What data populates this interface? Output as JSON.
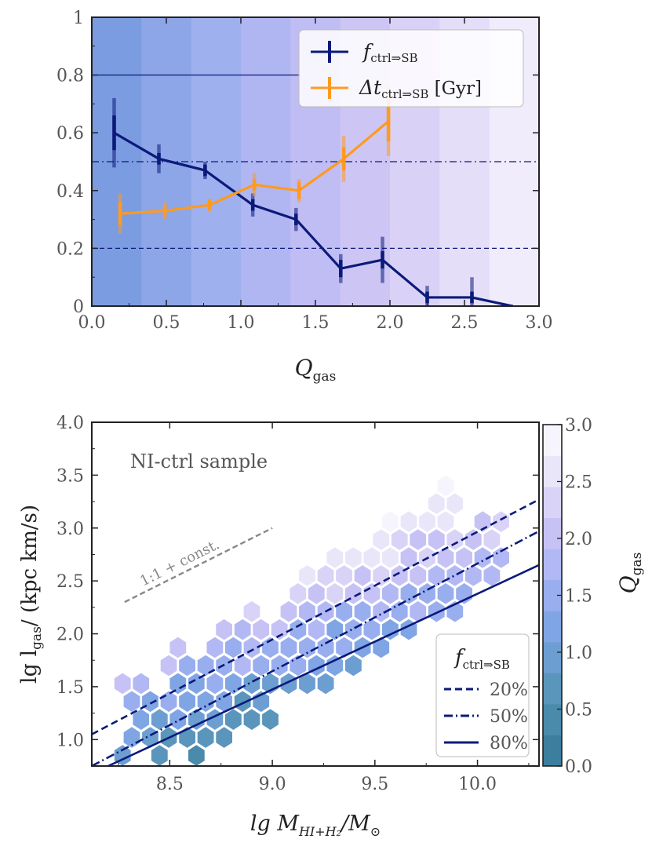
{
  "chart_data": [
    {
      "type": "line",
      "xlabel": "Q",
      "xlabel_sub": "gas",
      "xlim": [
        0.0,
        3.0
      ],
      "ylim": [
        0,
        1
      ],
      "xticks": [
        "0.0",
        "0.5",
        "1.0",
        "1.5",
        "2.0",
        "2.5",
        "3.0"
      ],
      "xtick_values": [
        0,
        0.5,
        1,
        1.5,
        2,
        2.5,
        3
      ],
      "yticks": [
        "0",
        "0.2",
        "0.4",
        "0.6",
        "0.8",
        "1"
      ],
      "ytick_values": [
        0,
        0.2,
        0.4,
        0.6,
        0.8,
        1
      ],
      "background_bins": {
        "edges": [
          0,
          0.333,
          0.667,
          1.0,
          1.333,
          1.667,
          2.0,
          2.333,
          2.667,
          3.0
        ],
        "colors": [
          "#7b9ce0",
          "#8ca6e8",
          "#9eb0ee",
          "#b0b6f2",
          "#c0bdf4",
          "#cdc6f4",
          "#dad2f6",
          "#e5def8",
          "#f0ecfb"
        ]
      },
      "reference_lines": [
        {
          "y": 0.8,
          "style": "solid",
          "x_range": [
            0,
            1.4
          ]
        },
        {
          "y": 0.5,
          "style": "dashdot"
        },
        {
          "y": 0.2,
          "style": "dashed"
        }
      ],
      "series": [
        {
          "name": "f",
          "name_sub": "ctrl⇒SB",
          "color": "#0b1a7a",
          "x": [
            0.15,
            0.45,
            0.76,
            1.08,
            1.37,
            1.67,
            1.95,
            2.25,
            2.55,
            2.82
          ],
          "y": [
            0.6,
            0.51,
            0.47,
            0.35,
            0.3,
            0.13,
            0.16,
            0.03,
            0.03,
            0.0
          ],
          "err_inner": [
            0.06,
            0.02,
            0.02,
            0.02,
            0.02,
            0.03,
            0.03,
            0.02,
            0.02,
            0.0
          ],
          "err_outer": [
            0.12,
            0.05,
            0.03,
            0.04,
            0.04,
            0.05,
            0.08,
            0.04,
            0.07,
            0.0
          ]
        },
        {
          "name": "Δt",
          "name_sub": "ctrl⇒SB",
          "name_suffix": " [Gyr]",
          "color": "#ff9a1f",
          "x": [
            0.19,
            0.49,
            0.79,
            1.09,
            1.39,
            1.69,
            1.99
          ],
          "y": [
            0.32,
            0.33,
            0.35,
            0.42,
            0.4,
            0.51,
            0.64
          ],
          "err_inner": [
            0.04,
            0.02,
            0.02,
            0.02,
            0.03,
            0.04,
            0.07
          ],
          "err_outer": [
            0.07,
            0.03,
            0.02,
            0.04,
            0.04,
            0.08,
            0.12
          ]
        }
      ],
      "legend_placement": "top-right"
    },
    {
      "type": "heatmap",
      "subtype": "hexbin",
      "annotation": "NI-ctrl sample",
      "guide_label": "1:1 + const.",
      "xlabel": "lg M",
      "xlabel_sub": "HI+H₂",
      "xlabel_suffix": "/M",
      "xlabel_sub2": "⊙",
      "ylabel": "lg l",
      "ylabel_sub": "gas",
      "ylabel_suffix": "/ (kpc km/s)",
      "xlim": [
        8.12,
        10.3
      ],
      "ylim": [
        0.75,
        4.0
      ],
      "xticks": [
        "8.5",
        "9.0",
        "9.5",
        "10.0"
      ],
      "xtick_values": [
        8.5,
        9.0,
        9.5,
        10.0
      ],
      "yticks": [
        "1.0",
        "1.5",
        "2.0",
        "2.5",
        "3.0",
        "3.5",
        "4.0"
      ],
      "ytick_values": [
        1.0,
        1.5,
        2.0,
        2.5,
        3.0,
        3.5,
        4.0
      ],
      "colorbar": {
        "label": "Q",
        "label_sub": "gas",
        "range": [
          0.0,
          3.0
        ],
        "ticks": [
          "0.0",
          "0.5",
          "1.0",
          "1.5",
          "2.0",
          "2.5",
          "3.0"
        ],
        "tick_values": [
          0,
          0.5,
          1,
          1.5,
          2,
          2.5,
          3
        ],
        "colors": [
          "#3d7e9e",
          "#4a8aab",
          "#5a95bb",
          "#6c9ed2",
          "#7fa5e4",
          "#98aeee",
          "#b2b8f4",
          "#c6c2f5",
          "#d9d3f7",
          "#eae6fa",
          "#f6f4fd"
        ]
      },
      "lines": [
        {
          "label": "20%",
          "style": "dashed",
          "x": [
            8.12,
            10.3
          ],
          "y": [
            1.05,
            3.27
          ]
        },
        {
          "label": "50%",
          "style": "dashdot",
          "x": [
            8.12,
            10.3
          ],
          "y": [
            0.75,
            2.97
          ]
        },
        {
          "label": "80%",
          "style": "solid",
          "x": [
            8.2,
            10.3
          ],
          "y": [
            0.75,
            2.65
          ]
        }
      ],
      "guide_line": {
        "x": [
          8.28,
          9.0
        ],
        "y": [
          2.3,
          3.0
        ]
      },
      "legend_title": "f",
      "legend_title_sub": "ctrl⇒SB",
      "legend_placement": "bottom-right"
    }
  ]
}
